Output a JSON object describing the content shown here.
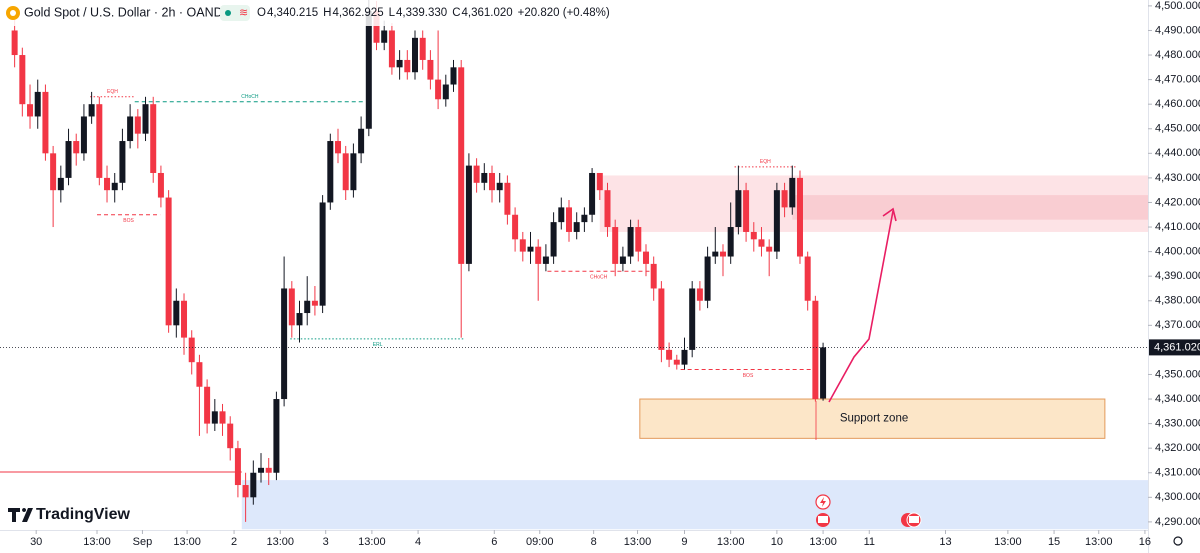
{
  "chart_data": {
    "type": "candlestick",
    "header": {
      "symbol": "Gold Spot / U.S. Dollar · 2h · OANDA",
      "ohlc": [
        {
          "label": "O",
          "value": "4,340.215"
        },
        {
          "label": "H",
          "value": "4,362.925"
        },
        {
          "label": "L",
          "value": "4,339.330"
        },
        {
          "label": "C",
          "value": "4,361.020"
        }
      ],
      "change": "+20.820 (+0.48%)"
    },
    "watermark": "TradingView",
    "up_color": "#131722",
    "down_color": "#f23645",
    "grid": false,
    "open": [
      4490,
      4480,
      4460,
      4455,
      4465,
      4440,
      4425,
      4430,
      4445,
      4440,
      4455,
      4460,
      4430,
      4425,
      4428,
      4445,
      4455,
      4448,
      4460,
      4432,
      4422,
      4370,
      4380,
      4365,
      4355,
      4345,
      4330,
      4335,
      4330,
      4320,
      4305,
      4300,
      4310,
      4312,
      4310,
      4340,
      4385,
      4370,
      4375,
      4380,
      4378,
      4420,
      4445,
      4440,
      4425,
      4440,
      4450,
      4498,
      4485,
      4490,
      4475,
      4478,
      4473,
      4487,
      4478,
      4470,
      4462,
      4468,
      4475,
      4395,
      4435,
      4428,
      4432,
      4425,
      4428,
      4415,
      4405,
      4400,
      4402,
      4395,
      4398,
      4412,
      4418,
      4408,
      4412,
      4415,
      4432,
      4425,
      4410,
      4395,
      4398,
      4410,
      4400,
      4395,
      4385,
      4360,
      4356,
      4354,
      4360,
      4385,
      4380,
      4398,
      4400,
      4398,
      4410,
      4425,
      4408,
      4405,
      4402,
      4400,
      4425,
      4418,
      4430,
      4398,
      4380,
      4340.215
    ],
    "high": [
      4495,
      4483,
      4468,
      4470,
      4468,
      4443,
      4435,
      4450,
      4448,
      4460,
      4465,
      4463,
      4435,
      4432,
      4450,
      4460,
      4458,
      4463,
      4463,
      4435,
      4425,
      4385,
      4383,
      4368,
      4358,
      4348,
      4340,
      4338,
      4333,
      4323,
      4310,
      4315,
      4318,
      4316,
      4343,
      4398,
      4388,
      4380,
      4390,
      4386,
      4423,
      4448,
      4450,
      4443,
      4444,
      4455,
      4503,
      4502,
      4494,
      4493,
      4482,
      4482,
      4490,
      4490,
      4482,
      4490,
      4472,
      4478,
      4478,
      4440,
      4438,
      4436,
      4435,
      4432,
      4431,
      4418,
      4408,
      4408,
      4405,
      4403,
      4416,
      4422,
      4421,
      4416,
      4418,
      4434,
      4432,
      4428,
      4413,
      4402,
      4413,
      4413,
      4403,
      4398,
      4388,
      4363,
      4358,
      4365,
      4388,
      4388,
      4402,
      4410,
      4403,
      4420,
      4435,
      4428,
      4412,
      4410,
      4405,
      4428,
      4428,
      4435,
      4433,
      4400,
      4382,
      4362.925
    ],
    "low": [
      4475,
      4455,
      4450,
      4450,
      4437,
      4410,
      4420,
      4427,
      4435,
      4437,
      4452,
      4427,
      4420,
      4420,
      4425,
      4442,
      4442,
      4445,
      4428,
      4418,
      4367,
      4365,
      4358,
      4350,
      4325,
      4326,
      4327,
      4325,
      4315,
      4300,
      4290,
      4297,
      4306,
      4305,
      4307,
      4337,
      4365,
      4363,
      4370,
      4374,
      4375,
      4417,
      4436,
      4421,
      4422,
      4436,
      4447,
      4482,
      4482,
      4472,
      4470,
      4470,
      4470,
      4474,
      4466,
      4458,
      4459,
      4465,
      4365,
      4392,
      4424,
      4425,
      4420,
      4420,
      4411,
      4400,
      4396,
      4395,
      4380,
      4392,
      4395,
      4409,
      4404,
      4405,
      4408,
      4412,
      4421,
      4406,
      4390,
      4392,
      4395,
      4396,
      4390,
      4380,
      4355,
      4353,
      4352,
      4352,
      4357,
      4376,
      4377,
      4395,
      4390,
      4395,
      4407,
      4404,
      4400,
      4398,
      4390,
      4397,
      4414,
      4415,
      4395,
      4376,
      4339,
      4339.33
    ],
    "close": [
      4480,
      4460,
      4455,
      4465,
      4440,
      4425,
      4430,
      4445,
      4440,
      4455,
      4460,
      4430,
      4425,
      4428,
      4445,
      4455,
      4448,
      4460,
      4432,
      4422,
      4370,
      4380,
      4365,
      4355,
      4345,
      4330,
      4335,
      4330,
      4320,
      4305,
      4300,
      4310,
      4312,
      4310,
      4340,
      4385,
      4370,
      4375,
      4380,
      4378,
      4420,
      4445,
      4440,
      4425,
      4440,
      4450,
      4498,
      4485,
      4490,
      4475,
      4478,
      4473,
      4487,
      4478,
      4470,
      4462,
      4468,
      4475,
      4395,
      4435,
      4428,
      4432,
      4425,
      4428,
      4415,
      4405,
      4400,
      4402,
      4395,
      4398,
      4412,
      4418,
      4408,
      4412,
      4415,
      4432,
      4425,
      4410,
      4395,
      4398,
      4410,
      4400,
      4395,
      4385,
      4360,
      4356,
      4354,
      4360,
      4385,
      4380,
      4398,
      4400,
      4398,
      4410,
      4425,
      4408,
      4405,
      4402,
      4400,
      4425,
      4418,
      4430,
      4398,
      4380,
      4340,
      4361.02
    ],
    "last_label": "4,361.020",
    "xlim": [
      -1.9,
      147.2
    ],
    "ylim": [
      4286.7,
      4502.4
    ],
    "xticks": [
      {
        "value": 2.8,
        "label": "30"
      },
      {
        "value": 10.7,
        "label": "13:00"
      },
      {
        "value": 16.6,
        "label": "Sep"
      },
      {
        "value": 22.4,
        "label": "13:00"
      },
      {
        "value": 28.5,
        "label": "2"
      },
      {
        "value": 34.5,
        "label": "13:00"
      },
      {
        "value": 40.4,
        "label": "3"
      },
      {
        "value": 46.4,
        "label": "13:00"
      },
      {
        "value": 52.4,
        "label": "4"
      },
      {
        "value": 62.3,
        "label": "6"
      },
      {
        "value": 68.2,
        "label": "09:00"
      },
      {
        "value": 75.2,
        "label": "8"
      },
      {
        "value": 80.9,
        "label": "13:00"
      },
      {
        "value": 87.0,
        "label": "9"
      },
      {
        "value": 93.0,
        "label": "13:00"
      },
      {
        "value": 99.0,
        "label": "10"
      },
      {
        "value": 105.0,
        "label": "13:00"
      },
      {
        "value": 111.0,
        "label": "11"
      },
      {
        "value": 120.9,
        "label": "13"
      },
      {
        "value": 129.0,
        "label": "13:00"
      },
      {
        "value": 135.0,
        "label": "15"
      },
      {
        "value": 140.8,
        "label": "13:00"
      },
      {
        "value": 146.8,
        "label": "16"
      }
    ],
    "yticks": [
      {
        "value": 4500,
        "label": "4,500.000"
      },
      {
        "value": 4490,
        "label": "4,490.000"
      },
      {
        "value": 4480,
        "label": "4,480.000"
      },
      {
        "value": 4470,
        "label": "4,470.000"
      },
      {
        "value": 4460,
        "label": "4,460.000"
      },
      {
        "value": 4450,
        "label": "4,450.000"
      },
      {
        "value": 4440,
        "label": "4,440.000"
      },
      {
        "value": 4430,
        "label": "4,430.000"
      },
      {
        "value": 4420,
        "label": "4,420.000"
      },
      {
        "value": 4410,
        "label": "4,410.000"
      },
      {
        "value": 4400,
        "label": "4,400.000"
      },
      {
        "value": 4390,
        "label": "4,390.000"
      },
      {
        "value": 4380,
        "label": "4,380.000"
      },
      {
        "value": 4370,
        "label": "4,370.000"
      },
      {
        "value": 4350,
        "label": "4,350.000"
      },
      {
        "value": 4340,
        "label": "4,340.000"
      },
      {
        "value": 4330,
        "label": "4,330.000"
      },
      {
        "value": 4320,
        "label": "4,320.000"
      },
      {
        "value": 4310,
        "label": "4,310.000"
      },
      {
        "value": 4300,
        "label": "4,300.000"
      },
      {
        "value": 4290,
        "label": "4,290.000"
      }
    ],
    "zones": [
      {
        "y": [
          4408,
          4431
        ],
        "x": [
          76,
          147.2
        ],
        "color": "#fde3e6"
      },
      {
        "y": [
          4413,
          4423
        ],
        "x": [
          101,
          147.2
        ],
        "color": "#f9cdd2"
      },
      {
        "y": [
          4324,
          4340
        ],
        "x": [
          81.2,
          141.6
        ],
        "color": "#fce6c8",
        "border": "#e39a5b",
        "label": "Support zone"
      },
      {
        "y": [
          4287,
          4307
        ],
        "x": [
          29.5,
          147.2
        ],
        "color": "#dde8fb"
      }
    ],
    "levels": [
      {
        "y": 4463,
        "x": [
          9.8,
          15.6
        ],
        "color": "#f23645",
        "style": "dotted",
        "label": "EQH",
        "label_position": "above"
      },
      {
        "y": 4461,
        "x": [
          15.6,
          45.5
        ],
        "color": "#089981",
        "style": "dashed",
        "label": "CHoCH",
        "label_position": "above"
      },
      {
        "y": 4415,
        "x": [
          10.7,
          18.9
        ],
        "color": "#f23645",
        "style": "dashed",
        "label": "BOS",
        "label_position": "below"
      },
      {
        "y": 4364.5,
        "x": [
          35.8,
          58.5
        ],
        "color": "#089981",
        "style": "dotted",
        "label": "ERL",
        "label_position": "below"
      },
      {
        "y": 4392,
        "x": [
          69.2,
          82.5
        ],
        "color": "#f23645",
        "style": "dashed",
        "label": "CHoCH",
        "label_position": "below"
      },
      {
        "y": 4352,
        "x": [
          86.5,
          104
        ],
        "color": "#f23645",
        "style": "dashed",
        "label": "BOS",
        "label_position": "below"
      },
      {
        "y": 4434.5,
        "x": [
          93.5,
          101.5
        ],
        "color": "#f23645",
        "style": "dotted",
        "label": "EQH",
        "label_position": "above"
      },
      {
        "y": 4310.3,
        "x": [
          -1.9,
          29.5
        ],
        "color": "#f23645",
        "style": "solid"
      }
    ]
  }
}
